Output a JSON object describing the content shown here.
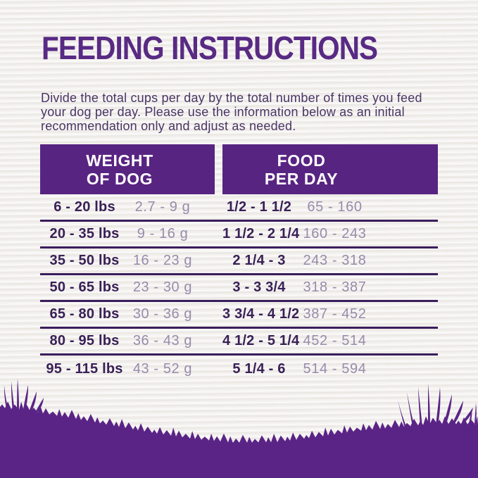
{
  "page": {
    "title": "FEEDING INSTRUCTIONS",
    "description": "Divide the total cups per day by the total number of times you feed your dog per day. Please use the information below as an initial recommendation only and adjust as needed."
  },
  "table": {
    "header_left": {
      "line1": "WEIGHT",
      "line2": "OF DOG"
    },
    "header_right": {
      "line1": "FOOD",
      "line2": "PER DAY"
    },
    "rows": [
      {
        "weight_lbs": "6 - 20 lbs",
        "weight_alt": "2.7 - 9 g",
        "cups": "1/2 - 1 1/2",
        "grams": "65 - 160"
      },
      {
        "weight_lbs": "20 - 35 lbs",
        "weight_alt": "9 - 16 g",
        "cups": "1 1/2 - 2 1/4",
        "grams": "160 - 243"
      },
      {
        "weight_lbs": "35 - 50 lbs",
        "weight_alt": "16 - 23 g",
        "cups": "2 1/4 - 3",
        "grams": "243 - 318"
      },
      {
        "weight_lbs": "50 - 65 lbs",
        "weight_alt": "23 - 30 g",
        "cups": "3 - 3 3/4",
        "grams": "318 - 387"
      },
      {
        "weight_lbs": "65 - 80 lbs",
        "weight_alt": "30 - 36 g",
        "cups": "3 3/4 - 4 1/2",
        "grams": "387 - 452"
      },
      {
        "weight_lbs": "80 - 95 lbs",
        "weight_alt": "36 - 43 g",
        "cups": "4 1/2 - 5 1/4",
        "grams": "452 - 514"
      },
      {
        "weight_lbs": "95 - 115 lbs",
        "weight_alt": "43 - 52 g",
        "cups": "5 1/4 - 6",
        "grams": "514 - 594"
      }
    ]
  },
  "colors": {
    "brand_purple": "#582482",
    "title_purple": "#582a84",
    "body_text": "#4a3566",
    "dark_cell_text": "#392057",
    "light_cell_text": "#968bab",
    "separator": "#3a1d5c",
    "header_text": "#ffffff",
    "grass_purple": "#5a2486",
    "paper": "#f2f0ed"
  }
}
